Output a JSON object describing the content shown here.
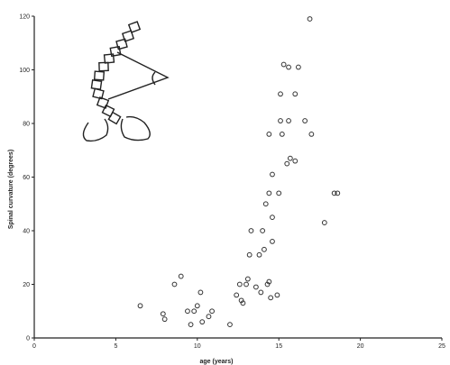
{
  "chart_data": {
    "type": "scatter",
    "title": "",
    "xlabel": "age (years)",
    "ylabel": "Spinal curvature (degrees)",
    "xlim": [
      0,
      25
    ],
    "ylim": [
      0,
      120
    ],
    "x_ticks": [
      0,
      5,
      10,
      15,
      20,
      25
    ],
    "y_ticks": [
      0,
      20,
      40,
      60,
      80,
      100,
      120
    ],
    "x_tick_labels": [
      "0",
      "5",
      "10",
      "15",
      "20",
      "25"
    ],
    "y_tick_labels": [
      "0",
      "20",
      "40",
      "60",
      "80",
      "100",
      "120"
    ],
    "grid": false,
    "legend": "none",
    "series": [
      {
        "points": [
          [
            6.5,
            12
          ],
          [
            7.9,
            9
          ],
          [
            8.0,
            7
          ],
          [
            8.6,
            20
          ],
          [
            9.0,
            23
          ],
          [
            9.4,
            10
          ],
          [
            9.6,
            5
          ],
          [
            9.8,
            10
          ],
          [
            10.0,
            12
          ],
          [
            10.3,
            6
          ],
          [
            10.7,
            8
          ],
          [
            10.9,
            10
          ],
          [
            10.2,
            17
          ],
          [
            12.0,
            5
          ],
          [
            12.4,
            16
          ],
          [
            12.6,
            20
          ],
          [
            12.7,
            14
          ],
          [
            12.8,
            13
          ],
          [
            13.0,
            20
          ],
          [
            13.1,
            22
          ],
          [
            13.2,
            31
          ],
          [
            13.3,
            40
          ],
          [
            13.6,
            19
          ],
          [
            13.8,
            31
          ],
          [
            13.9,
            17
          ],
          [
            14.0,
            40
          ],
          [
            14.1,
            33
          ],
          [
            14.2,
            50
          ],
          [
            14.3,
            20
          ],
          [
            14.4,
            21
          ],
          [
            14.5,
            15
          ],
          [
            14.6,
            36
          ],
          [
            14.6,
            45
          ],
          [
            14.4,
            54
          ],
          [
            14.6,
            61
          ],
          [
            14.4,
            76
          ],
          [
            14.9,
            16
          ],
          [
            15.0,
            54
          ],
          [
            15.1,
            81
          ],
          [
            15.1,
            91
          ],
          [
            15.2,
            76
          ],
          [
            15.3,
            102
          ],
          [
            15.5,
            65
          ],
          [
            15.6,
            101
          ],
          [
            15.7,
            67
          ],
          [
            15.6,
            81
          ],
          [
            16.0,
            66
          ],
          [
            16.2,
            101
          ],
          [
            16.0,
            91
          ],
          [
            16.6,
            81
          ],
          [
            17.0,
            76
          ],
          [
            17.8,
            43
          ],
          [
            18.4,
            54
          ],
          [
            18.6,
            54
          ],
          [
            16.9,
            119
          ]
        ]
      }
    ]
  },
  "inset": {
    "icon": "spine-cobb-angle-icon"
  }
}
